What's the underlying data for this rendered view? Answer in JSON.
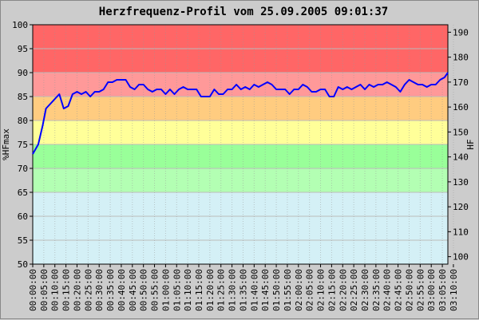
{
  "chart_data": {
    "type": "line",
    "title": "Herzfrequenz-Profil vom 25.09.2005 09:01:37",
    "ylabel_left": "%HFmax",
    "ylabel_right": "HF",
    "ylim_left": [
      50,
      100
    ],
    "ylim_right": [
      97,
      193
    ],
    "yticks_left": [
      50,
      55,
      60,
      65,
      70,
      75,
      80,
      85,
      90,
      95,
      100
    ],
    "yticks_right": [
      100,
      110,
      120,
      130,
      140,
      150,
      160,
      170,
      180,
      190
    ],
    "xlim": [
      0,
      11250
    ],
    "grid": true,
    "xtick_labels": [
      "00:00:00",
      "00:05:00",
      "00:10:00",
      "00:15:00",
      "00:20:00",
      "00:25:00",
      "00:30:00",
      "00:35:00",
      "00:40:00",
      "00:45:00",
      "00:50:00",
      "00:55:00",
      "01:00:00",
      "01:05:00",
      "01:10:00",
      "01:15:00",
      "01:20:00",
      "01:25:00",
      "01:30:00",
      "01:35:00",
      "01:40:00",
      "01:45:00",
      "01:50:00",
      "01:55:00",
      "02:00:00",
      "02:05:00",
      "02:10:00",
      "02:15:00",
      "02:20:00",
      "02:25:00",
      "02:30:00",
      "02:35:00",
      "02:40:00",
      "02:45:00",
      "02:50:00",
      "02:55:00",
      "03:00:00",
      "03:05:00",
      "03:10:00"
    ],
    "zones": [
      {
        "from": 50,
        "to": 65,
        "color": "#d4f0f6"
      },
      {
        "from": 65,
        "to": 70,
        "color": "#b3ffb3"
      },
      {
        "from": 70,
        "to": 75,
        "color": "#99ff99"
      },
      {
        "from": 75,
        "to": 80,
        "color": "#ffff99"
      },
      {
        "from": 80,
        "to": 85,
        "color": "#ffcc80"
      },
      {
        "from": 85,
        "to": 90,
        "color": "#ff9999"
      },
      {
        "from": 90,
        "to": 100,
        "color": "#ff6666"
      }
    ],
    "line_color": "#0000ff",
    "series": [
      {
        "x": [
          0,
          150,
          270,
          360,
          480,
          600,
          720,
          840,
          960,
          1080,
          1200,
          1320,
          1440,
          1560,
          1680,
          1800,
          1920,
          2040,
          2160,
          2280,
          2400,
          2520,
          2640,
          2760,
          2880,
          3000,
          3120,
          3240,
          3360,
          3480,
          3600,
          3720,
          3840,
          3960,
          4080,
          4200,
          4320,
          4440,
          4560,
          4680,
          4800,
          4920,
          5040,
          5160,
          5280,
          5400,
          5520,
          5640,
          5760,
          5880,
          6000,
          6120,
          6240,
          6360,
          6480,
          6600,
          6720,
          6840,
          6960,
          7080,
          7200,
          7320,
          7440,
          7560,
          7680,
          7800,
          7920,
          8040,
          8160,
          8280,
          8400,
          8520,
          8640,
          8760,
          8880,
          9000,
          9120,
          9240,
          9360,
          9480,
          9600,
          9720,
          9840,
          9960,
          10080,
          10200,
          10320,
          10440,
          10560,
          10680,
          10800,
          10920,
          11040,
          11160,
          11250
        ],
        "values": [
          73,
          75,
          79,
          82.5,
          83.5,
          84.5,
          85.5,
          82.5,
          83,
          85.5,
          86,
          85.5,
          86,
          85,
          86,
          86,
          86.5,
          88,
          88,
          88.5,
          88.5,
          88.5,
          87,
          86.5,
          87.5,
          87.5,
          86.5,
          86,
          86.5,
          86.5,
          85.5,
          86.5,
          85.5,
          86.5,
          87,
          86.5,
          86.5,
          86.5,
          85,
          85,
          85,
          86.5,
          85.5,
          85.5,
          86.5,
          86.5,
          87.5,
          86.5,
          87,
          86.5,
          87.5,
          87,
          87.5,
          88,
          87.5,
          86.5,
          86.5,
          86.5,
          85.5,
          86.5,
          86.5,
          87.5,
          87,
          86,
          86,
          86.5,
          86.5,
          85,
          85,
          87,
          86.5,
          87,
          86.5,
          87,
          87.5,
          86.5,
          87.5,
          87,
          87.5,
          87.5,
          88,
          87.5,
          87,
          86,
          87.5,
          88.5,
          88,
          87.5,
          87.5,
          87,
          87.5,
          87.5,
          88.5,
          89,
          90
        ]
      }
    ]
  }
}
